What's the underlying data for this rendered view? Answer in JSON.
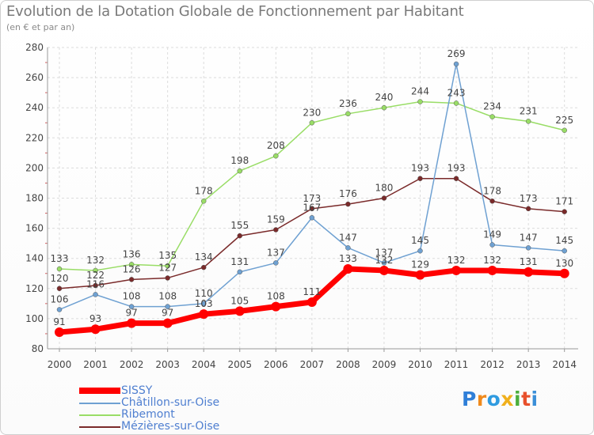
{
  "header": {
    "title": "Evolution de la Dotation Globale de Fonctionnement par Habitant",
    "subtitle": "(en € et par an)"
  },
  "logo": {
    "text": "Proxiti"
  },
  "chart_data": {
    "type": "line",
    "title": "Evolution de la Dotation Globale de Fonctionnement par Habitant",
    "subtitle": "(en € et par an)",
    "xlabel": "",
    "ylabel": "",
    "ylim": [
      80,
      280
    ],
    "yticks": [
      80,
      100,
      120,
      140,
      160,
      180,
      200,
      220,
      240,
      260,
      280
    ],
    "grid": true,
    "legend_position": "bottom-left",
    "categories": [
      "2000",
      "2001",
      "2002",
      "2003",
      "2004",
      "2005",
      "2006",
      "2007",
      "2008",
      "2009",
      "2010",
      "2011",
      "2012",
      "2013",
      "2014"
    ],
    "series": [
      {
        "name": "SISSY",
        "color": "#ff0000",
        "values": [
          91,
          93,
          97,
          97,
          103,
          105,
          108,
          111,
          133,
          132,
          129,
          132,
          132,
          131,
          130
        ]
      },
      {
        "name": "Châtillon-sur-Oise",
        "color": "#6fa1d2",
        "values": [
          106,
          116,
          108,
          108,
          110,
          131,
          137,
          167,
          147,
          137,
          145,
          269,
          149,
          147,
          145
        ]
      },
      {
        "name": "Ribemont",
        "color": "#99dd66",
        "values": [
          133,
          132,
          136,
          135,
          178,
          198,
          208,
          230,
          236,
          240,
          244,
          243,
          234,
          231,
          225
        ]
      },
      {
        "name": "Mézières-sur-Oise",
        "color": "#7a2a2a",
        "values": [
          120,
          122,
          126,
          127,
          134,
          155,
          159,
          173,
          176,
          180,
          193,
          193,
          178,
          173,
          171
        ]
      }
    ]
  }
}
